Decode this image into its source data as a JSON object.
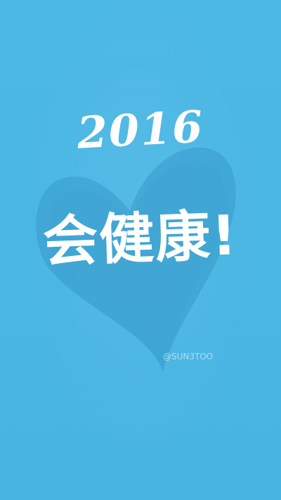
{
  "wallpaper": {
    "year": "2016",
    "slogan": "会健康!",
    "watermark": "@SUN3TOO",
    "colors": {
      "background": "#4ab6e3",
      "heart": "#2e8fbf",
      "text": "#ffffff"
    },
    "icons": [
      "heart-shape"
    ]
  }
}
